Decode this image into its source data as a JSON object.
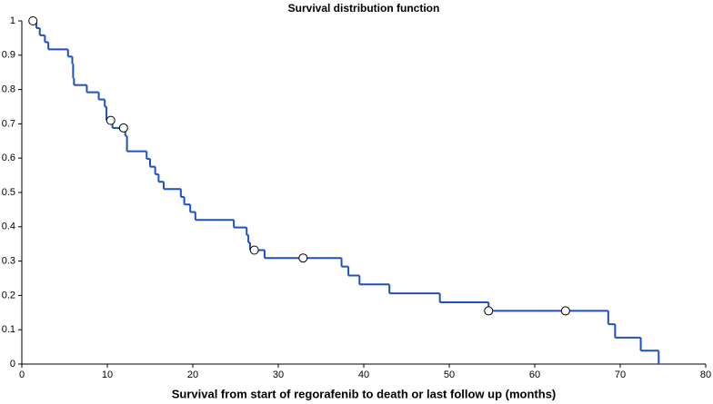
{
  "chart_data": {
    "type": "step",
    "title": "Survival distribution function",
    "x_label": "Survival from start of regorafenib to death or last follow up (months)",
    "xlim": [
      0,
      80
    ],
    "xticks": [
      0,
      10,
      20,
      30,
      40,
      50,
      60,
      70,
      80
    ],
    "ylim": [
      0,
      1
    ],
    "yticks": [
      0,
      0.1,
      0.2,
      0.3,
      0.4,
      0.5,
      0.6,
      0.7,
      0.8,
      0.9,
      1
    ],
    "grid": false,
    "series": [
      {
        "color": "#1f4fc4",
        "x": [
          1.3,
          1.7,
          2.1,
          2.7,
          3.1,
          5.4,
          5.9,
          6.0,
          6.1,
          7.6,
          9.0,
          9.7,
          9.9,
          10.6,
          12.1,
          12.3,
          14.6,
          15.0,
          15.6,
          16.0,
          16.6,
          18.6,
          19.0,
          19.7,
          20.3,
          24.8,
          26.3,
          26.5,
          26.7,
          28.4,
          37.4,
          38.2,
          39.5,
          43.0,
          48.9,
          54.6,
          68.6,
          69.4,
          72.4,
          74.5
        ],
        "values": [
          1,
          0.979,
          0.958,
          0.938,
          0.917,
          0.896,
          0.875,
          0.833,
          0.813,
          0.792,
          0.771,
          0.75,
          0.71,
          0.688,
          0.665,
          0.62,
          0.598,
          0.575,
          0.553,
          0.531,
          0.51,
          0.487,
          0.465,
          0.443,
          0.42,
          0.398,
          0.376,
          0.354,
          0.332,
          0.309,
          0.284,
          0.258,
          0.232,
          0.206,
          0.18,
          0.155,
          0.116,
          0.077,
          0.039,
          0
        ]
      }
    ],
    "censored": {
      "x": [
        1.3,
        10.4,
        11.9,
        27.2,
        32.9,
        54.6,
        63.6
      ],
      "values": [
        1,
        0.71,
        0.688,
        0.332,
        0.309,
        0.155,
        0.155
      ]
    }
  }
}
